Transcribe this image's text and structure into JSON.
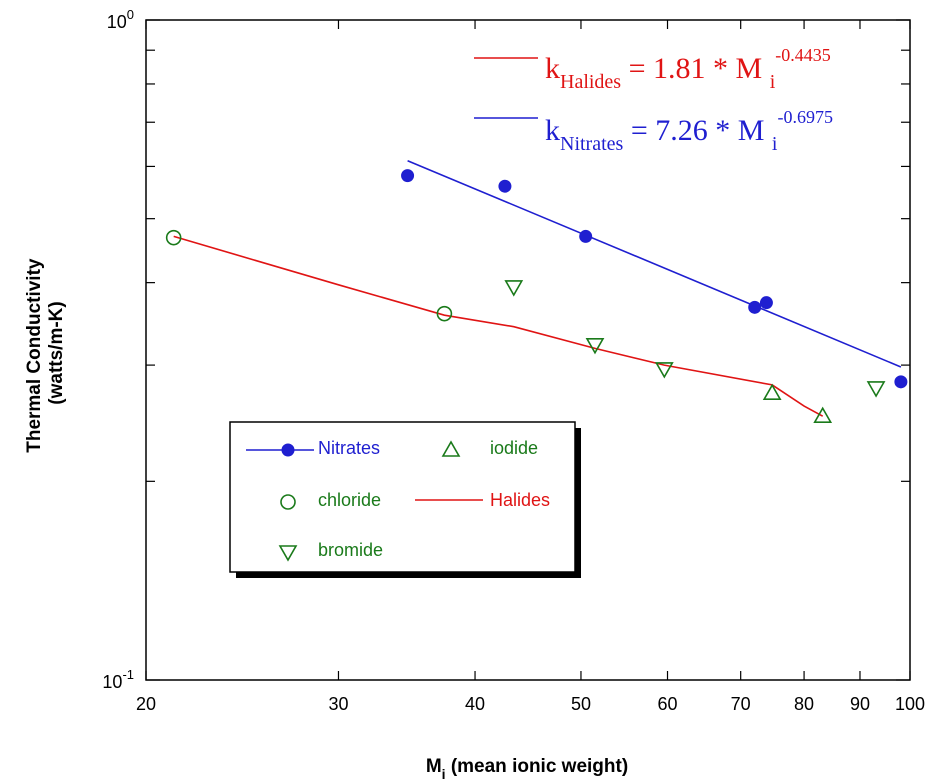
{
  "chart_data": {
    "type": "scatter",
    "x_scale": "log",
    "y_scale": "log",
    "xlim": [
      20,
      100
    ],
    "ylim": [
      0.1,
      1.0
    ],
    "x_ticks": [
      20,
      30,
      40,
      50,
      60,
      70,
      80,
      90,
      100
    ],
    "x_tick_labels": [
      "20",
      "30",
      "40",
      "50",
      "60",
      "70",
      "80",
      "90",
      "100"
    ],
    "y_tick_labels": [
      {
        "value": 1.0,
        "base": "10",
        "exp": "0"
      },
      {
        "value": 0.1,
        "base": "10",
        "exp": "-1"
      }
    ],
    "y_minor_ticks": [
      0.2,
      0.3,
      0.4,
      0.5,
      0.6,
      0.7,
      0.8,
      0.9
    ],
    "xlabel": {
      "main": "M",
      "sub": "i",
      "rest": "  (mean ionic weight)"
    },
    "ylabel_lines": [
      "Thermal Conductivity",
      "(watts/m-K)"
    ],
    "grid": false,
    "legend_position": "lower-left",
    "colors": {
      "nitrates": "#1f1fd0",
      "halides": "#e01414",
      "halide_markers": "#1a7a1a"
    },
    "series": [
      {
        "name": "Nitrates",
        "marker": "filled-circle",
        "color": "#1f1fd0",
        "x": [
          34.7,
          42.6,
          50.5,
          72.1,
          73.9,
          98.1
        ],
        "y": [
          0.581,
          0.56,
          0.47,
          0.367,
          0.373,
          0.283
        ]
      },
      {
        "name": "chloride",
        "marker": "open-circle",
        "color": "#1a7a1a",
        "x": [
          21.2,
          37.5
        ],
        "y": [
          0.468,
          0.359
        ]
      },
      {
        "name": "bromide",
        "marker": "down-triangle",
        "color": "#1a7a1a",
        "x": [
          43.4,
          51.5,
          59.6,
          93.1
        ],
        "y": [
          0.394,
          0.322,
          0.296,
          0.277
        ]
      },
      {
        "name": "iodide",
        "marker": "up-triangle",
        "color": "#1a7a1a",
        "x": [
          74.8,
          83.2
        ],
        "y": [
          0.272,
          0.251
        ]
      },
      {
        "name": "Halides",
        "marker": "line",
        "color": "#e01414",
        "x": [
          21.2,
          30.0,
          37.5,
          43.4,
          51.5,
          59.6,
          74.8,
          80.0,
          83.2
        ],
        "y": [
          0.47,
          0.397,
          0.357,
          0.343,
          0.318,
          0.3,
          0.28,
          0.26,
          0.251
        ]
      },
      {
        "name": "Nitrates",
        "role": "fit",
        "marker": "line",
        "color": "#1f1fd0",
        "x": [
          34.7,
          98.1
        ],
        "y": [
          0.612,
          0.298
        ]
      }
    ],
    "annotations": [
      {
        "id": "halides_eq",
        "k": "k",
        "sub": "Halides",
        "eq": "=  1.81 * M",
        "sub2": "i",
        "sup": "-0.4435",
        "color": "#e01414"
      },
      {
        "id": "nitrates_eq",
        "k": "k",
        "sub": "Nitrates",
        "eq": "=  7.26 * M",
        "sub2": "i",
        "sup": "-0.6975",
        "color": "#1f1fd0"
      }
    ],
    "legend": [
      {
        "label": "Nitrates",
        "marker": "filled-circle-line",
        "color": "#1f1fd0",
        "text_color": "#1f1fd0"
      },
      {
        "label": "iodide",
        "marker": "up-triangle",
        "color": "#1a7a1a",
        "text_color": "#1a7a1a"
      },
      {
        "label": "chloride",
        "marker": "open-circle",
        "color": "#1a7a1a",
        "text_color": "#1a7a1a"
      },
      {
        "label": "Halides",
        "marker": "line",
        "color": "#e01414",
        "text_color": "#e01414"
      },
      {
        "label": "bromide",
        "marker": "down-triangle",
        "color": "#1a7a1a",
        "text_color": "#1a7a1a"
      }
    ]
  }
}
